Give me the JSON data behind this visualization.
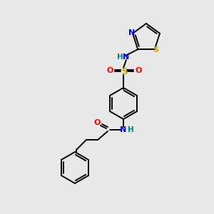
{
  "background_color": "#e8e8e8",
  "colors": {
    "bond": "#000000",
    "N": "#0000ff",
    "O": "#ff0000",
    "S_sulfonyl": "#ccaa00",
    "S_thiazole": "#ccaa00",
    "H_on_N": "#008080"
  },
  "figsize": [
    3.0,
    3.0
  ],
  "dpi": 100,
  "xlim": [
    0,
    300
  ],
  "ylim": [
    0,
    300
  ],
  "lw": 1.4,
  "font_size": 7.5
}
